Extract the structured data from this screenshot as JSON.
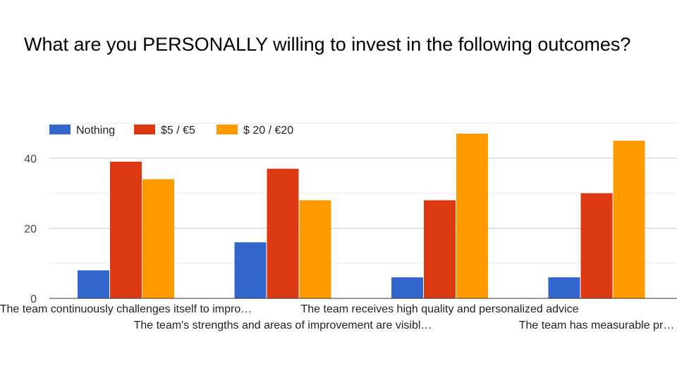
{
  "chart_data": {
    "type": "bar",
    "title": "What are you PERSONALLY willing to invest in the following outcomes?",
    "categories": [
      "The team continuously challenges itself to impro…",
      "The team's strengths and areas of improvement are visibl…",
      "The team receives high quality and personalized advice",
      "The team has measurable pr…"
    ],
    "series": [
      {
        "name": "Nothing",
        "color": "#3366cc",
        "values": [
          8,
          16,
          6,
          6
        ]
      },
      {
        "name": "$5 / €5",
        "color": "#dc3912",
        "values": [
          39,
          37,
          28,
          30
        ]
      },
      {
        "name": "$ 20 / €20",
        "color": "#ff9900",
        "values": [
          34,
          28,
          47,
          45
        ]
      }
    ],
    "yticks": [
      0,
      20,
      40
    ],
    "ylim": [
      0,
      50
    ],
    "grid": true,
    "legend_position": "top-left",
    "xlabel": "",
    "ylabel": ""
  }
}
